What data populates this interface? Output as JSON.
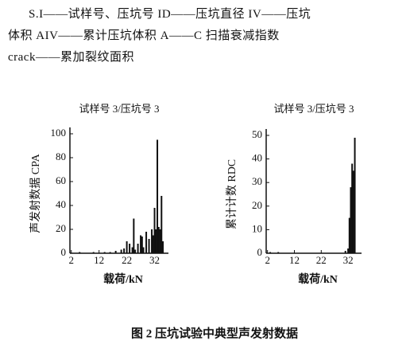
{
  "text": {
    "lines": [
      "S.I——试样号、压坑号  ID——压坑直径  IV——压坑",
      "体积  AIV——累计压坑体积  A——C 扫描衰减指数",
      "crack——累加裂纹面积"
    ]
  },
  "chart_data": [
    {
      "type": "bar",
      "title": "试样号 3/压坑号 3",
      "ylabel": "声发射数据 CPA",
      "xlabel": "载荷/kN",
      "color": "#111111",
      "x": [
        5,
        10,
        14,
        16,
        18,
        20,
        21,
        22,
        23,
        24,
        24.5,
        25,
        26,
        27,
        27.5,
        28,
        29,
        30,
        31,
        31.5,
        32,
        32.5,
        33,
        33.5,
        34,
        34.5,
        35
      ],
      "values": [
        1,
        1,
        1,
        1,
        2,
        3,
        4,
        10,
        8,
        5,
        29,
        3,
        8,
        15,
        14,
        5,
        18,
        12,
        20,
        15,
        38,
        20,
        95,
        22,
        20,
        48,
        10
      ],
      "xlim": [
        1.5,
        37
      ],
      "ylim": [
        0,
        100
      ],
      "xticks": [
        2,
        12,
        22,
        32
      ],
      "yticks": [
        0,
        20,
        40,
        60,
        80,
        100
      ]
    },
    {
      "type": "bar",
      "title": "试样号 3/压坑号 3",
      "ylabel": "累计计数 RDC",
      "xlabel": "载荷/kN",
      "color": "#111111",
      "x": [
        3,
        6,
        31,
        32,
        32.5,
        33,
        33.5,
        34,
        34.5
      ],
      "values": [
        0.5,
        0.5,
        1,
        2,
        15,
        28,
        38,
        35,
        49
      ],
      "xlim": [
        1.5,
        37
      ],
      "ylim": [
        0,
        50
      ],
      "xticks": [
        2,
        12,
        22,
        32
      ],
      "yticks": [
        0,
        10,
        20,
        30,
        40,
        50
      ]
    }
  ],
  "caption": "图 2  压坑试验中典型声发射数据"
}
